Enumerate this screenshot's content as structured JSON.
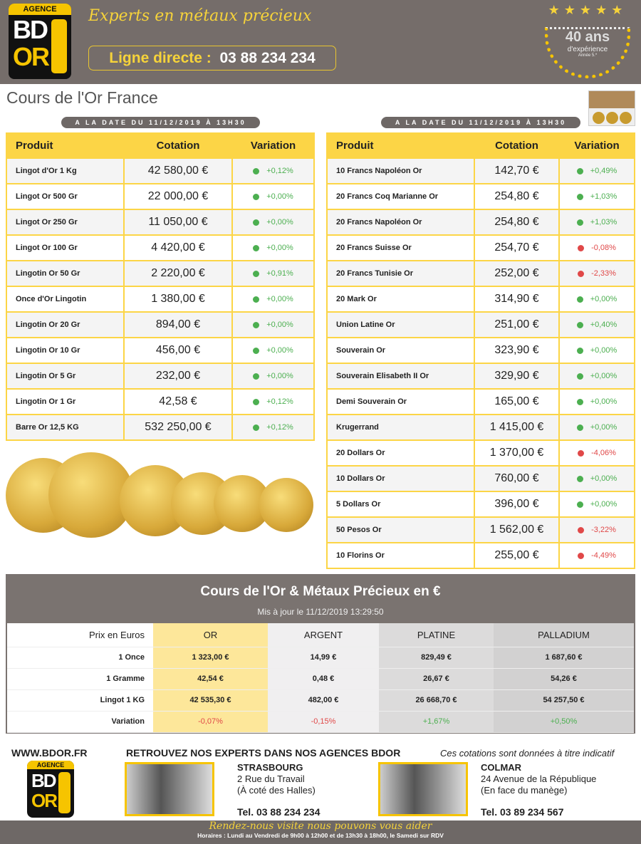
{
  "header": {
    "logo_agence": "AGENCE",
    "logo_bd": "BD",
    "logo_or": "OR",
    "tagline": "Experts en métaux précieux",
    "phone_label": "Ligne directe :",
    "phone": "03 88 234 234",
    "badge_years": "40 ans",
    "badge_sub": "d'expérience",
    "badge_tiny": "Année 5.*"
  },
  "page_title": "Cours de l'Or France",
  "date_label": "A LA DATE DU 11/12/2019 À 13H30",
  "columns": {
    "product": "Produit",
    "quote": "Cotation",
    "variation": "Variation"
  },
  "colors": {
    "up": "#4caf50",
    "down": "#e04848",
    "accent": "#fcd546",
    "brand_bg": "#756d6a"
  },
  "left_table": [
    [
      "Lingot d'Or 1 Kg",
      "42 580,00 €",
      "+0,12%",
      "up"
    ],
    [
      "Lingot Or 500 Gr",
      "22 000,00 €",
      "+0,00%",
      "up"
    ],
    [
      "Lingot Or 250 Gr",
      "11 050,00 €",
      "+0,00%",
      "up"
    ],
    [
      "Lingot Or 100 Gr",
      "4 420,00 €",
      "+0,00%",
      "up"
    ],
    [
      "Lingotin Or 50 Gr",
      "2 220,00 €",
      "+0,91%",
      "up"
    ],
    [
      "Once d'Or Lingotin",
      "1 380,00 €",
      "+0,00%",
      "up"
    ],
    [
      "Lingotin Or 20 Gr",
      "894,00 €",
      "+0,00%",
      "up"
    ],
    [
      "Lingotin Or 10 Gr",
      "456,00 €",
      "+0,00%",
      "up"
    ],
    [
      "Lingotin Or 5 Gr",
      "232,00 €",
      "+0,00%",
      "up"
    ],
    [
      "Lingotin Or 1 Gr",
      "42,58 €",
      "+0,12%",
      "up"
    ],
    [
      "Barre Or 12,5 KG",
      "532 250,00 €",
      "+0,12%",
      "up"
    ]
  ],
  "right_table": [
    [
      "10 Francs Napoléon Or",
      "142,70 €",
      "+0,49%",
      "up"
    ],
    [
      "20 Francs Coq Marianne Or",
      "254,80 €",
      "+1,03%",
      "up"
    ],
    [
      "20 Francs Napoléon Or",
      "254,80 €",
      "+1,03%",
      "up"
    ],
    [
      "20 Francs Suisse Or",
      "254,70 €",
      "-0,08%",
      "down"
    ],
    [
      "20 Francs Tunisie Or",
      "252,00 €",
      "-2,33%",
      "down"
    ],
    [
      "20 Mark Or",
      "314,90 €",
      "+0,00%",
      "up"
    ],
    [
      "Union Latine Or",
      "251,00 €",
      "+0,40%",
      "up"
    ],
    [
      "Souverain Or",
      "323,90 €",
      "+0,00%",
      "up"
    ],
    [
      "Souverain Elisabeth II Or",
      "329,90 €",
      "+0,00%",
      "up"
    ],
    [
      "Demi Souverain Or",
      "165,00 €",
      "+0,00%",
      "up"
    ],
    [
      "Krugerrand",
      "1 415,00 €",
      "+0,00%",
      "up"
    ],
    [
      "20 Dollars Or",
      "1 370,00 €",
      "-4,06%",
      "down"
    ],
    [
      "10 Dollars Or",
      "760,00 €",
      "+0,00%",
      "up"
    ],
    [
      "5 Dollars Or",
      "396,00 €",
      "+0,00%",
      "up"
    ],
    [
      "50 Pesos Or",
      "1 562,00 €",
      "-3,22%",
      "down"
    ],
    [
      "10 Florins Or",
      "255,00 €",
      "-4,49%",
      "down"
    ]
  ],
  "metals": {
    "title": "Cours de l'Or & Métaux Précieux en €",
    "updated": "Mis à jour le 11/12/2019 13:29:50",
    "header": [
      "Prix en Euros",
      "OR",
      "ARGENT",
      "PLATINE",
      "PALLADIUM"
    ],
    "rows": [
      [
        "1 Once",
        "1 323,00 €",
        "14,99 €",
        "829,49 €",
        "1 687,60 €"
      ],
      [
        "1 Gramme",
        "42,54 €",
        "0,48 €",
        "26,67 €",
        "54,26 €"
      ],
      [
        "Lingot 1 KG",
        "42 535,30 €",
        "482,00 €",
        "26 668,70 €",
        "54 257,50 €"
      ],
      [
        "Variation",
        "-0,07%",
        "-0,15%",
        "+1,67%",
        "+0,50%"
      ]
    ],
    "variation_dirs": [
      "down",
      "down",
      "up",
      "up"
    ]
  },
  "footer": {
    "site": "WWW.BDOR.FR",
    "headline": "RETROUVEZ NOS EXPERTS DANS NOS AGENCES BDOR",
    "disclaimer": "Ces cotations sont données à titre indicatif",
    "agencies": [
      {
        "city": "STRASBOURG",
        "line1": "2 Rue du Travail",
        "line2": "(À coté des Halles)",
        "tel": "Tel. 03 88 234 234"
      },
      {
        "city": "COLMAR",
        "line1": "24 Avenue de la République",
        "line2": "(En face du manège)",
        "tel": "Tel. 03 89 234 567"
      }
    ],
    "slogan": "Rendez-nous visite nous pouvons vous aider",
    "hours": "Horaires : Lundi au Vendredi de 9h00 à 12h00 et de 13h30 à 18h00, le Samedi sur RDV"
  }
}
